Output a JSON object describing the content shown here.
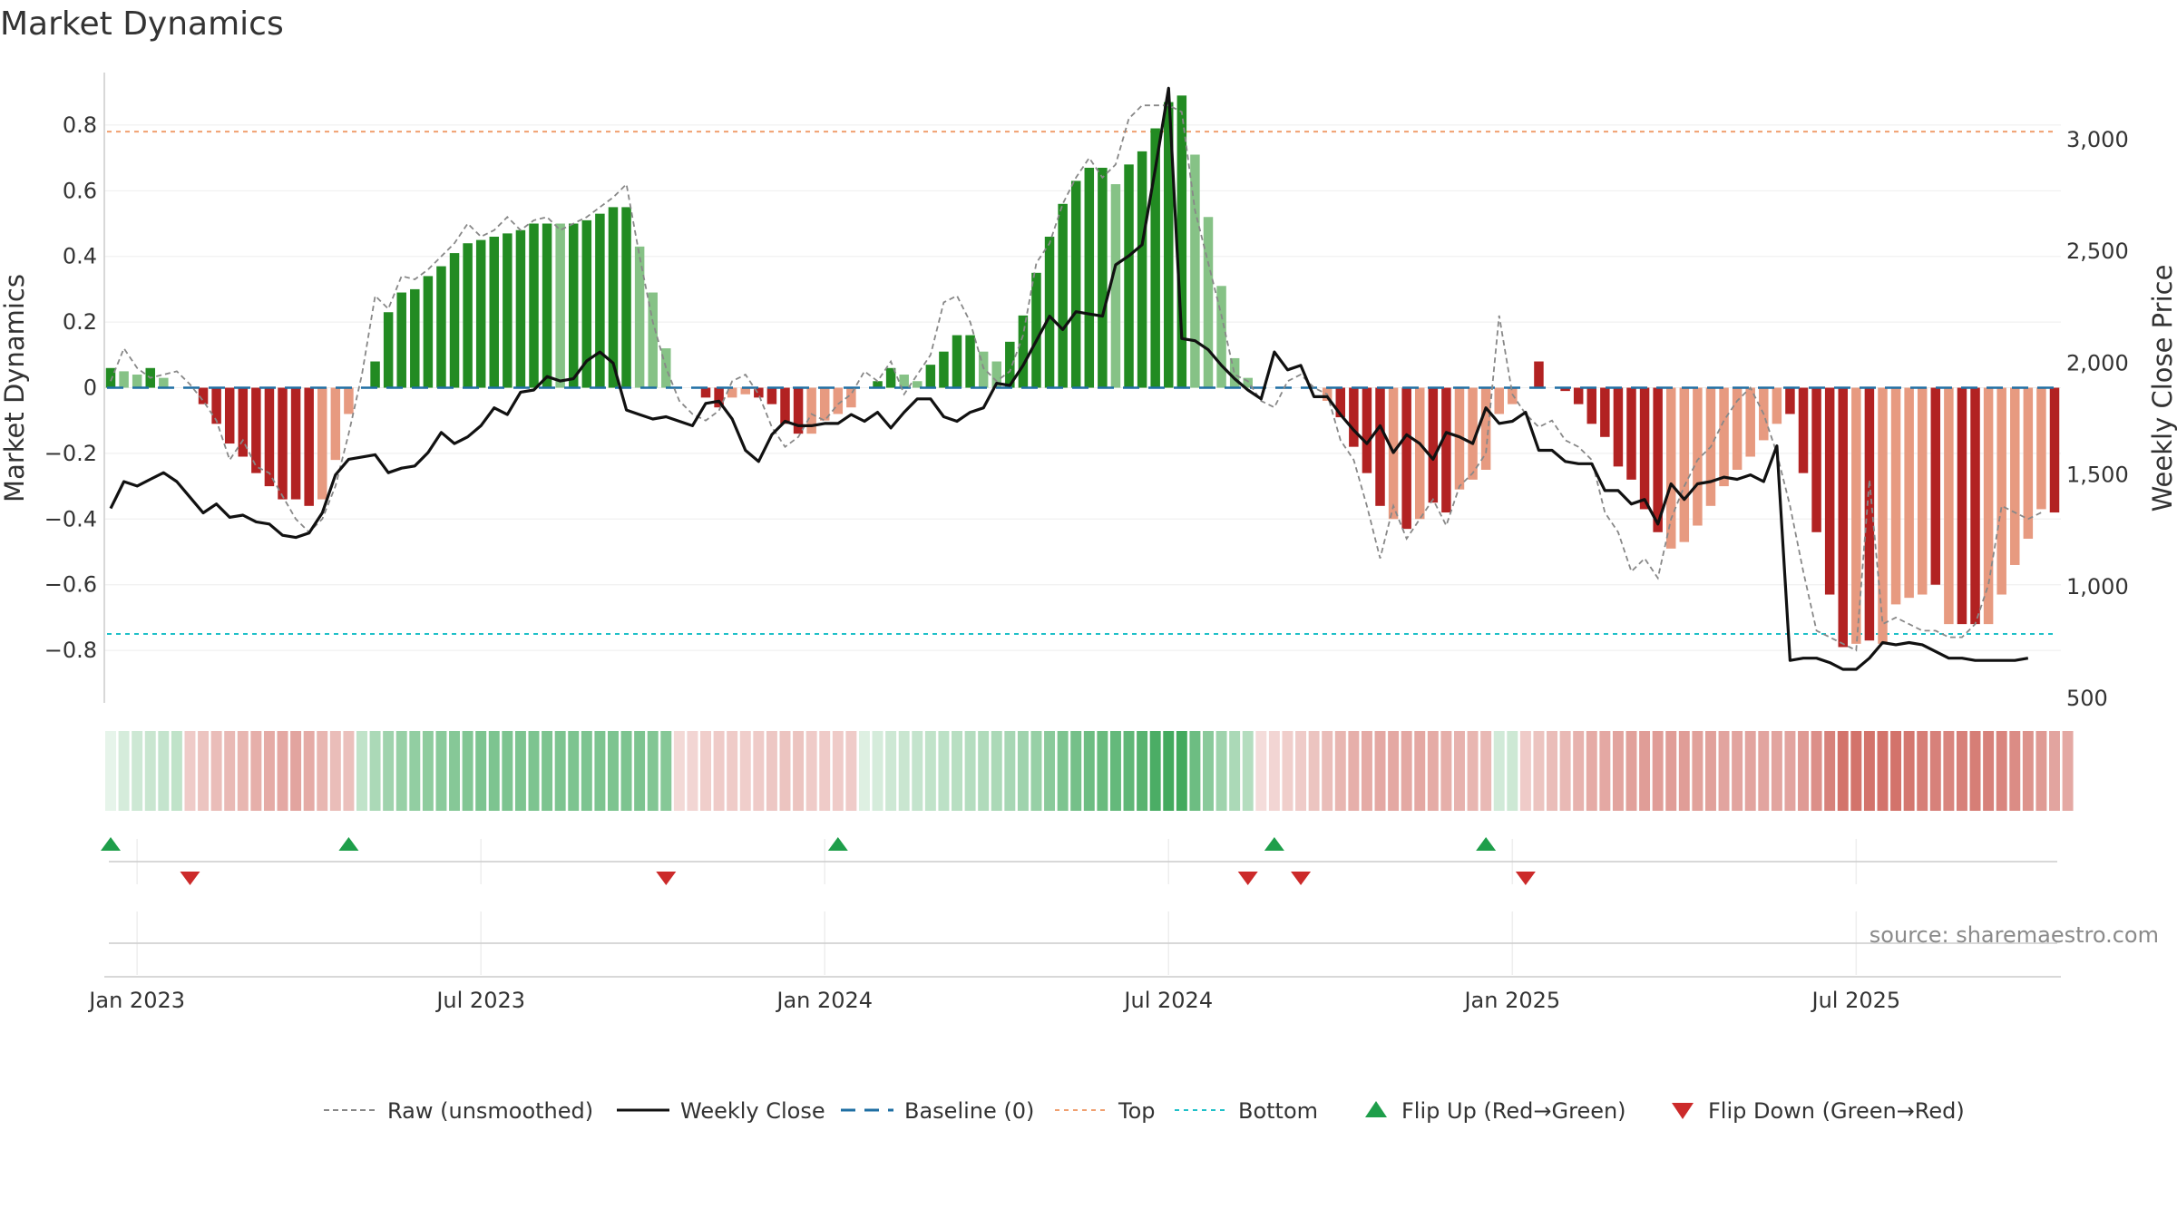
{
  "title": "Market Dynamics",
  "source": "source: sharemaestro.com",
  "colors": {
    "strong_green": "#228B22",
    "light_green": "#86C286",
    "strong_red": "#B22222",
    "light_red": "#E79A80",
    "raw": "#888888",
    "close": "#111111",
    "baseline": "#1f6fa3",
    "top": "#f0a070",
    "bottom": "#20c0c8",
    "flip_up": "#1e9e4a",
    "flip_down": "#cc2a2a"
  },
  "chart_data": {
    "type": "bar",
    "ylabel_left": "Market Dynamics",
    "ylabel_right": "Weekly Close Price",
    "ylim_left": [
      -0.96,
      0.96
    ],
    "ylim_right": [
      480,
      3300
    ],
    "left_ticks": [
      {
        "v": 0.8,
        "label": "0.8"
      },
      {
        "v": 0.6,
        "label": "0.6"
      },
      {
        "v": 0.4,
        "label": "0.4"
      },
      {
        "v": 0.2,
        "label": "0.2"
      },
      {
        "v": 0,
        "label": "0"
      },
      {
        "v": -0.2,
        "label": "−0.2"
      },
      {
        "v": -0.4,
        "label": "−0.4"
      },
      {
        "v": -0.6,
        "label": "−0.6"
      },
      {
        "v": -0.8,
        "label": "−0.8"
      }
    ],
    "right_ticks": [
      {
        "v": 3000,
        "label": "3,000"
      },
      {
        "v": 2500,
        "label": "2,500"
      },
      {
        "v": 2000,
        "label": "2,000"
      },
      {
        "v": 1500,
        "label": "1,500"
      },
      {
        "v": 1000,
        "label": "1,000"
      },
      {
        "v": 500,
        "label": "500"
      }
    ],
    "x_ticks": [
      {
        "week": 2,
        "label": "Jan 2023"
      },
      {
        "week": 28,
        "label": "Jul 2023"
      },
      {
        "week": 54,
        "label": "Jan 2024"
      },
      {
        "week": 80,
        "label": "Jul 2024"
      },
      {
        "week": 106,
        "label": "Jan 2025"
      },
      {
        "week": 132,
        "label": "Jul 2025"
      }
    ],
    "top_line": 0.78,
    "bottom_line": -0.75,
    "bars": [
      0.06,
      0.05,
      0.04,
      0.06,
      0.03,
      0,
      0,
      -0.05,
      -0.11,
      -0.17,
      -0.21,
      -0.26,
      -0.3,
      -0.34,
      -0.34,
      -0.36,
      -0.34,
      -0.22,
      -0.08,
      0,
      0.08,
      0.23,
      0.29,
      0.3,
      0.34,
      0.37,
      0.41,
      0.44,
      0.45,
      0.46,
      0.47,
      0.48,
      0.5,
      0.5,
      0.5,
      0.5,
      0.51,
      0.53,
      0.55,
      0.55,
      0.43,
      0.29,
      0.12,
      0,
      0,
      -0.03,
      -0.06,
      -0.03,
      -0.02,
      -0.03,
      -0.05,
      -0.11,
      -0.14,
      -0.14,
      -0.1,
      -0.08,
      -0.06,
      0,
      0.02,
      0.06,
      0.04,
      0.02,
      0.07,
      0.11,
      0.16,
      0.16,
      0.11,
      0.08,
      0.14,
      0.22,
      0.35,
      0.46,
      0.56,
      0.63,
      0.67,
      0.67,
      0.62,
      0.68,
      0.72,
      0.79,
      0.87,
      0.89,
      0.71,
      0.52,
      0.31,
      0.09,
      0.03,
      0,
      0,
      0,
      0,
      0,
      -0.04,
      -0.09,
      -0.18,
      -0.26,
      -0.36,
      -0.4,
      -0.43,
      -0.4,
      -0.35,
      -0.38,
      -0.31,
      -0.28,
      -0.25,
      -0.08,
      -0.05,
      0,
      0.08,
      0,
      -0.01,
      -0.05,
      -0.11,
      -0.15,
      -0.24,
      -0.28,
      -0.37,
      -0.44,
      -0.49,
      -0.47,
      -0.42,
      -0.36,
      -0.3,
      -0.25,
      -0.21,
      -0.16,
      -0.11,
      -0.08,
      -0.26,
      -0.44,
      -0.63,
      -0.79,
      -0.78,
      -0.77,
      -0.78,
      -0.66,
      -0.64,
      -0.63,
      -0.6,
      -0.72,
      -0.72,
      -0.72,
      -0.72,
      -0.63,
      -0.54,
      -0.46,
      -0.37,
      -0.38
    ],
    "bar_colors": [
      "SG",
      "LG",
      "LG",
      "SG",
      "LG",
      "LG",
      "LR",
      "SR",
      "SR",
      "SR",
      "SR",
      "SR",
      "SR",
      "SR",
      "SR",
      "SR",
      "LR",
      "LR",
      "LR",
      "LG",
      "SG",
      "SG",
      "SG",
      "SG",
      "SG",
      "SG",
      "SG",
      "SG",
      "SG",
      "SG",
      "SG",
      "SG",
      "SG",
      "SG",
      "LG",
      "SG",
      "SG",
      "SG",
      "SG",
      "SG",
      "LG",
      "LG",
      "LG",
      "LR",
      "LR",
      "SR",
      "SR",
      "LR",
      "LR",
      "SR",
      "SR",
      "SR",
      "SR",
      "LR",
      "LR",
      "LR",
      "LR",
      "LG",
      "SG",
      "SG",
      "LG",
      "LG",
      "SG",
      "SG",
      "SG",
      "SG",
      "LG",
      "LG",
      "SG",
      "SG",
      "SG",
      "SG",
      "SG",
      "SG",
      "SG",
      "SG",
      "LG",
      "SG",
      "SG",
      "SG",
      "SG",
      "SG",
      "LG",
      "LG",
      "LG",
      "LG",
      "LG",
      "LG",
      "LR",
      "LR",
      "LR",
      "LR",
      "LR",
      "SR",
      "SR",
      "SR",
      "SR",
      "LR",
      "SR",
      "LR",
      "SR",
      "SR",
      "LR",
      "LR",
      "LR",
      "LR",
      "LR",
      "SG",
      "SR",
      "SR",
      "SR",
      "SR",
      "SR",
      "SR",
      "SR",
      "SR",
      "SR",
      "SR",
      "LR",
      "LR",
      "LR",
      "LR",
      "LR",
      "LR",
      "LR",
      "LR",
      "LR",
      "SR",
      "SR",
      "SR",
      "SR",
      "SR",
      "LR",
      "SR",
      "LR",
      "LR",
      "LR",
      "LR",
      "SR",
      "LR",
      "SR",
      "SR",
      "LR",
      "LR",
      "LR",
      "LR",
      "LR",
      "SR"
    ],
    "raw": [
      0.02,
      0.12,
      0.06,
      0.03,
      0.04,
      0.05,
      0.01,
      -0.04,
      -0.1,
      -0.22,
      -0.16,
      -0.24,
      -0.26,
      -0.33,
      -0.4,
      -0.44,
      -0.4,
      -0.3,
      -0.14,
      0.04,
      0.28,
      0.24,
      0.34,
      0.33,
      0.36,
      0.4,
      0.44,
      0.5,
      0.46,
      0.48,
      0.52,
      0.48,
      0.51,
      0.52,
      0.48,
      0.5,
      0.52,
      0.55,
      0.58,
      0.62,
      0.4,
      0.2,
      0.06,
      -0.04,
      -0.08,
      -0.1,
      -0.07,
      0.02,
      0.04,
      -0.02,
      -0.12,
      -0.18,
      -0.15,
      -0.08,
      -0.1,
      -0.05,
      -0.02,
      0.05,
      0.02,
      0.08,
      -0.02,
      0.04,
      0.1,
      0.26,
      0.28,
      0.2,
      0.06,
      0.02,
      0.05,
      0.16,
      0.38,
      0.44,
      0.56,
      0.64,
      0.7,
      0.64,
      0.68,
      0.82,
      0.86,
      0.86,
      0.86,
      0.84,
      0.54,
      0.38,
      0.22,
      0.04,
      0.02,
      -0.04,
      -0.06,
      0.02,
      0.04,
      0.0,
      -0.02,
      -0.16,
      -0.22,
      -0.36,
      -0.52,
      -0.36,
      -0.46,
      -0.4,
      -0.34,
      -0.42,
      -0.3,
      -0.26,
      -0.2,
      0.22,
      -0.02,
      -0.08,
      -0.12,
      -0.1,
      -0.16,
      -0.18,
      -0.22,
      -0.38,
      -0.44,
      -0.56,
      -0.52,
      -0.58,
      -0.4,
      -0.3,
      -0.22,
      -0.18,
      -0.1,
      -0.04,
      0.0,
      -0.08,
      -0.2,
      -0.36,
      -0.56,
      -0.74,
      -0.76,
      -0.78,
      -0.8,
      -0.28,
      -0.72,
      -0.7,
      -0.72,
      -0.74,
      -0.74,
      -0.76,
      -0.76,
      -0.72,
      -0.6,
      -0.36,
      -0.38,
      -0.4,
      -0.38
    ],
    "close": [
      1350,
      1470,
      1450,
      1480,
      1510,
      1470,
      1400,
      1330,
      1370,
      1310,
      1320,
      1290,
      1280,
      1230,
      1220,
      1240,
      1330,
      1500,
      1570,
      1580,
      1590,
      1510,
      1530,
      1540,
      1600,
      1690,
      1640,
      1670,
      1720,
      1800,
      1770,
      1870,
      1880,
      1940,
      1920,
      1930,
      2010,
      2050,
      2000,
      1790,
      1770,
      1750,
      1760,
      1740,
      1720,
      1820,
      1830,
      1750,
      1610,
      1560,
      1680,
      1740,
      1720,
      1720,
      1730,
      1730,
      1770,
      1740,
      1780,
      1710,
      1780,
      1840,
      1840,
      1760,
      1740,
      1780,
      1800,
      1910,
      1900,
      1990,
      2100,
      2210,
      2150,
      2230,
      2220,
      2210,
      2440,
      2480,
      2530,
      2870,
      3230,
      2110,
      2100,
      2060,
      1990,
      1930,
      1880,
      1840,
      2050,
      1970,
      1990,
      1850,
      1850,
      1770,
      1700,
      1640,
      1720,
      1600,
      1680,
      1640,
      1570,
      1690,
      1670,
      1640,
      1800,
      1730,
      1740,
      1780,
      1610,
      1610,
      1560,
      1550,
      1550,
      1430,
      1430,
      1370,
      1390,
      1280,
      1460,
      1390,
      1460,
      1470,
      1490,
      1480,
      1500,
      1470,
      1630,
      670,
      680,
      680,
      660,
      630,
      630,
      680,
      750,
      740,
      750,
      740,
      710,
      680,
      680,
      670,
      670,
      670,
      670,
      680
    ],
    "heat": [
      0.12,
      0.2,
      0.24,
      0.26,
      0.28,
      0.3,
      -0.3,
      -0.34,
      -0.38,
      -0.4,
      -0.42,
      -0.46,
      -0.48,
      -0.5,
      -0.52,
      -0.48,
      -0.42,
      -0.38,
      -0.36,
      0.3,
      0.4,
      0.46,
      0.5,
      0.52,
      0.54,
      0.56,
      0.58,
      0.6,
      0.62,
      0.62,
      0.62,
      0.62,
      0.62,
      0.62,
      0.62,
      0.62,
      0.62,
      0.62,
      0.62,
      0.62,
      0.62,
      0.6,
      0.58,
      -0.22,
      -0.24,
      -0.28,
      -0.3,
      -0.3,
      -0.28,
      -0.3,
      -0.32,
      -0.34,
      -0.34,
      -0.3,
      -0.3,
      -0.3,
      -0.3,
      0.16,
      0.2,
      0.24,
      0.26,
      0.28,
      0.3,
      0.32,
      0.34,
      0.36,
      0.38,
      0.4,
      0.42,
      0.46,
      0.5,
      0.56,
      0.62,
      0.66,
      0.7,
      0.72,
      0.74,
      0.76,
      0.8,
      0.86,
      0.9,
      0.9,
      0.7,
      0.56,
      0.46,
      0.4,
      0.36,
      -0.2,
      -0.24,
      -0.28,
      -0.3,
      -0.34,
      -0.38,
      -0.42,
      -0.46,
      -0.48,
      -0.5,
      -0.5,
      -0.5,
      -0.5,
      -0.48,
      -0.46,
      -0.44,
      -0.42,
      -0.4,
      0.22,
      0.24,
      -0.3,
      -0.34,
      -0.38,
      -0.4,
      -0.44,
      -0.48,
      -0.5,
      -0.52,
      -0.54,
      -0.56,
      -0.56,
      -0.56,
      -0.56,
      -0.54,
      -0.54,
      -0.52,
      -0.52,
      -0.52,
      -0.52,
      -0.52,
      -0.52,
      -0.58,
      -0.64,
      -0.72,
      -0.8,
      -0.8,
      -0.8,
      -0.8,
      -0.8,
      -0.78,
      -0.74,
      -0.72,
      -0.7,
      -0.72,
      -0.74,
      -0.72,
      -0.7,
      -0.66,
      -0.62,
      -0.58,
      -0.52,
      -0.5
    ],
    "flips_up": [
      0,
      18,
      55,
      88,
      104
    ],
    "flips_down": [
      6,
      42,
      86,
      90,
      107
    ],
    "legend": [
      {
        "key": "raw",
        "label": "Raw (unsmoothed)"
      },
      {
        "key": "close",
        "label": "Weekly Close"
      },
      {
        "key": "baseline",
        "label": "Baseline (0)"
      },
      {
        "key": "top",
        "label": "Top"
      },
      {
        "key": "bottom",
        "label": "Bottom"
      },
      {
        "key": "flip_up",
        "label": "Flip Up (Red→Green)"
      },
      {
        "key": "flip_down",
        "label": "Flip Down (Green→Red)"
      }
    ]
  }
}
